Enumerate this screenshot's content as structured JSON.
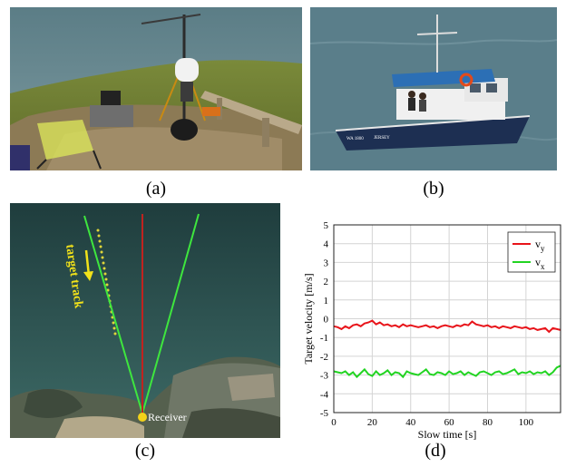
{
  "captions": {
    "a": "(a)",
    "b": "(b)",
    "c": "(c)",
    "d": "(d)"
  },
  "photo_b": {
    "boat_name": "JERSEY",
    "boat_reg": "WA 1800",
    "boat_sign": "Jersey"
  },
  "map_c": {
    "track_label": "target track",
    "receiver_label": "Receiver"
  },
  "chart_data": {
    "type": "line",
    "xlabel": "Slow time [s]",
    "ylabel": "Target velocity [m/s]",
    "xlim": [
      0,
      118
    ],
    "ylim": [
      -5,
      5
    ],
    "xticks": [
      0,
      20,
      40,
      60,
      80,
      100
    ],
    "yticks": [
      5,
      4,
      3,
      2,
      1,
      0,
      -1,
      -2,
      -3,
      -4,
      -5
    ],
    "grid": true,
    "legend_position": "top-right",
    "series": [
      {
        "name": "v_y",
        "color": "#e8141a",
        "x": [
          0,
          2,
          4,
          6,
          8,
          10,
          12,
          14,
          16,
          18,
          20,
          22,
          24,
          26,
          28,
          30,
          32,
          34,
          36,
          38,
          40,
          42,
          44,
          46,
          48,
          50,
          52,
          54,
          56,
          58,
          60,
          62,
          64,
          66,
          68,
          70,
          72,
          74,
          76,
          78,
          80,
          82,
          84,
          86,
          88,
          90,
          92,
          94,
          96,
          98,
          100,
          102,
          104,
          106,
          108,
          110,
          112,
          114,
          116,
          118
        ],
        "y": [
          -0.4,
          -0.45,
          -0.55,
          -0.4,
          -0.5,
          -0.35,
          -0.3,
          -0.4,
          -0.25,
          -0.2,
          -0.1,
          -0.3,
          -0.2,
          -0.35,
          -0.3,
          -0.4,
          -0.35,
          -0.45,
          -0.3,
          -0.4,
          -0.35,
          -0.4,
          -0.45,
          -0.4,
          -0.35,
          -0.45,
          -0.4,
          -0.5,
          -0.4,
          -0.35,
          -0.4,
          -0.45,
          -0.35,
          -0.4,
          -0.3,
          -0.35,
          -0.15,
          -0.3,
          -0.35,
          -0.4,
          -0.35,
          -0.45,
          -0.4,
          -0.5,
          -0.4,
          -0.45,
          -0.5,
          -0.4,
          -0.45,
          -0.5,
          -0.45,
          -0.55,
          -0.5,
          -0.6,
          -0.55,
          -0.5,
          -0.7,
          -0.5,
          -0.55,
          -0.6
        ]
      },
      {
        "name": "v_x",
        "color": "#22d422",
        "x": [
          0,
          2,
          4,
          6,
          8,
          10,
          12,
          14,
          16,
          18,
          20,
          22,
          24,
          26,
          28,
          30,
          32,
          34,
          36,
          38,
          40,
          42,
          44,
          46,
          48,
          50,
          52,
          54,
          56,
          58,
          60,
          62,
          64,
          66,
          68,
          70,
          72,
          74,
          76,
          78,
          80,
          82,
          84,
          86,
          88,
          90,
          92,
          94,
          96,
          98,
          100,
          102,
          104,
          106,
          108,
          110,
          112,
          114,
          116,
          118
        ],
        "y": [
          -2.8,
          -2.85,
          -2.9,
          -2.8,
          -3.0,
          -2.85,
          -3.1,
          -2.9,
          -2.7,
          -2.95,
          -3.05,
          -2.8,
          -3.0,
          -2.9,
          -2.75,
          -3.0,
          -2.85,
          -2.9,
          -3.1,
          -2.8,
          -2.9,
          -2.95,
          -3.0,
          -2.85,
          -2.7,
          -2.95,
          -3.0,
          -2.85,
          -2.9,
          -3.0,
          -2.8,
          -2.95,
          -2.9,
          -2.8,
          -3.0,
          -2.85,
          -2.95,
          -3.05,
          -2.85,
          -2.8,
          -2.9,
          -3.0,
          -2.85,
          -2.8,
          -2.95,
          -2.9,
          -2.8,
          -2.7,
          -2.95,
          -2.85,
          -2.9,
          -2.8,
          -2.95,
          -2.85,
          -2.9,
          -2.8,
          -3.0,
          -2.85,
          -2.6,
          -2.5
        ]
      }
    ]
  }
}
